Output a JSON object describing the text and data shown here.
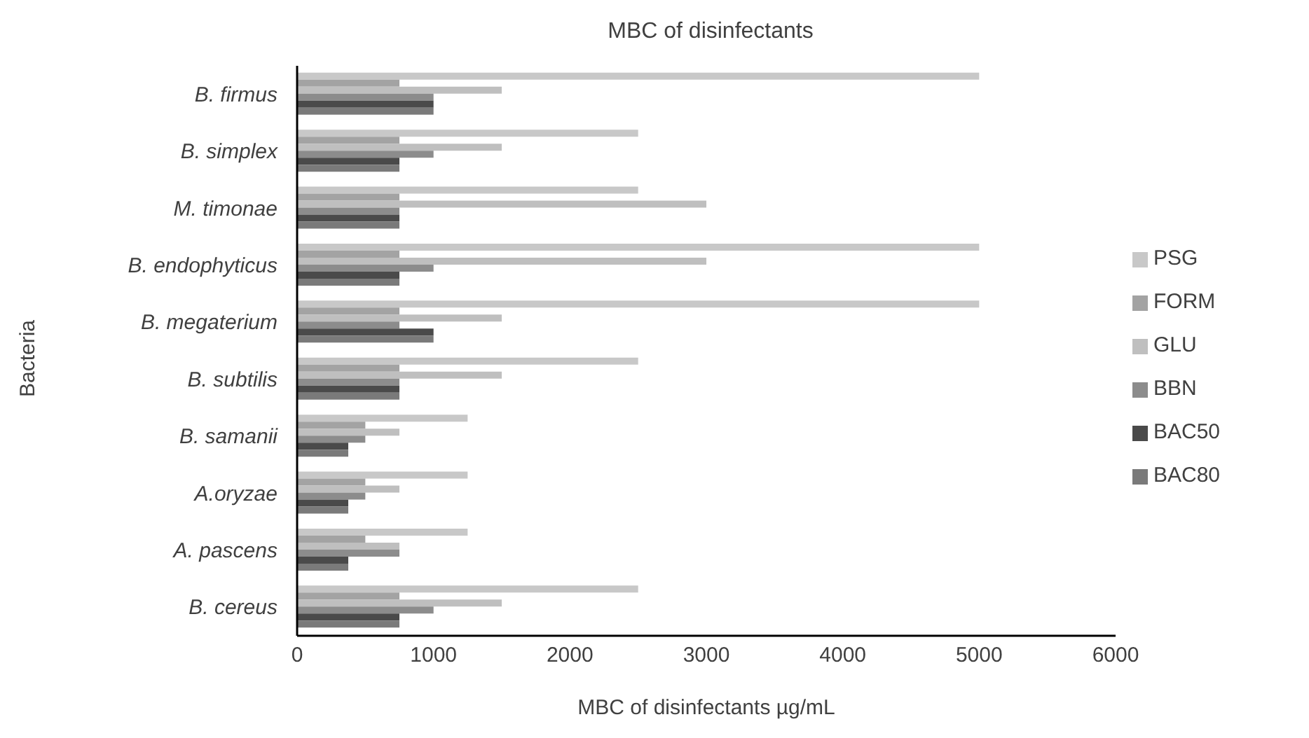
{
  "chart_data": {
    "type": "bar",
    "orientation": "horizontal",
    "title": "MBC of disinfectants",
    "xlabel": "MBC of disinfectants µg/mL",
    "ylabel": "Bacteria",
    "categories": [
      "B. firmus",
      "B. simplex",
      "M. timonae",
      "B. endophyticus",
      "B. megaterium",
      "B. subtilis",
      "B. samanii",
      "A.oryzae",
      "A. pascens",
      "B. cereus"
    ],
    "series": [
      {
        "name": "PSG",
        "color": "#c8c8c8",
        "values": [
          5000,
          2500,
          2500,
          5000,
          5000,
          2500,
          1250,
          1250,
          1250,
          2500
        ]
      },
      {
        "name": "FORM",
        "color": "#a3a3a3",
        "values": [
          750,
          750,
          750,
          750,
          750,
          750,
          500,
          500,
          500,
          750
        ]
      },
      {
        "name": "GLU",
        "color": "#bfbfbf",
        "values": [
          1500,
          1500,
          3000,
          3000,
          1500,
          1500,
          750,
          750,
          750,
          1500
        ]
      },
      {
        "name": "BBN",
        "color": "#8c8c8c",
        "values": [
          1000,
          1000,
          750,
          1000,
          750,
          750,
          500,
          500,
          750,
          1000
        ]
      },
      {
        "name": "BAC50",
        "color": "#4a4a4a",
        "values": [
          1000,
          750,
          750,
          750,
          1000,
          750,
          375,
          375,
          375,
          750
        ]
      },
      {
        "name": "BAC80",
        "color": "#7a7a7a",
        "values": [
          1000,
          750,
          750,
          750,
          1000,
          750,
          375,
          375,
          375,
          750
        ]
      }
    ],
    "xlim": [
      0,
      6000
    ],
    "xticks": [
      0,
      1000,
      2000,
      3000,
      4000,
      5000,
      6000
    ],
    "legend": "right"
  }
}
